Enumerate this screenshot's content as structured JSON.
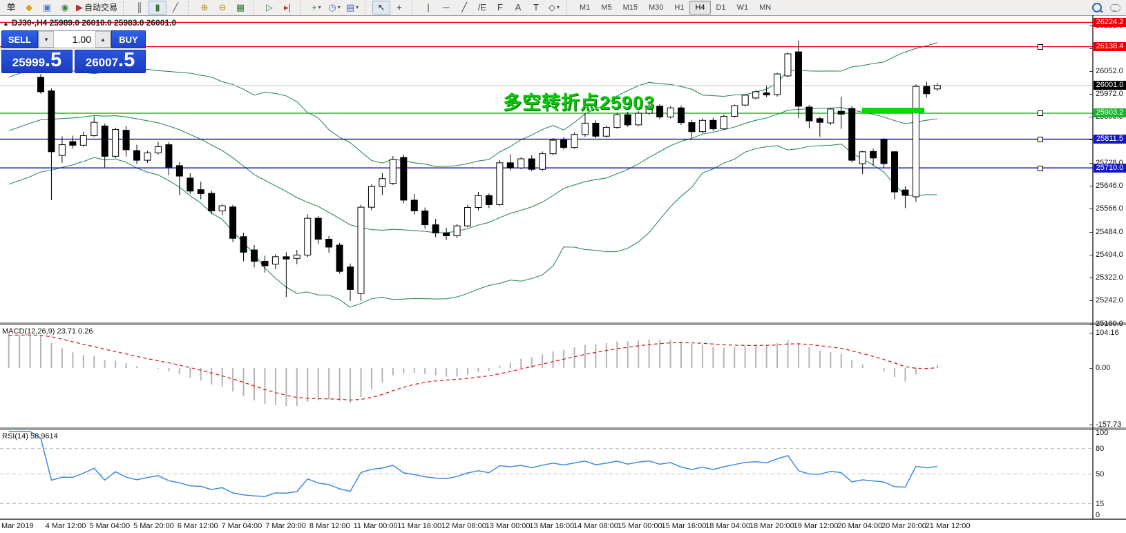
{
  "toolbar": {
    "left_items": [
      {
        "name": "new-order-button",
        "glyph": "单",
        "color": "#222"
      },
      {
        "name": "history-center-icon",
        "glyph": "◆",
        "color": "#d8a212"
      },
      {
        "name": "market-watch-icon",
        "glyph": "▣",
        "color": "#4a78c8"
      },
      {
        "name": "signals-icon",
        "glyph": "◉",
        "color": "#3a8a3a"
      },
      {
        "name": "autotrading-icon",
        "glyph": "▶",
        "color": "#b03030",
        "label": "自动交易"
      }
    ],
    "chart_type_items": [
      {
        "name": "bar-chart-icon",
        "glyph": "║",
        "color": "#555",
        "pressed": false
      },
      {
        "name": "candlestick-chart-icon",
        "glyph": "▮",
        "color": "#3a7a3a",
        "pressed": true
      },
      {
        "name": "line-chart-icon",
        "glyph": "╱",
        "color": "#555",
        "pressed": false
      }
    ],
    "zoom_items": [
      {
        "name": "zoom-in-icon",
        "glyph": "⊕",
        "color": "#b8860b"
      },
      {
        "name": "zoom-out-icon",
        "glyph": "⊖",
        "color": "#b8860b"
      },
      {
        "name": "tile-windows-icon",
        "glyph": "▦",
        "color": "#2f7d32"
      }
    ],
    "scroll_items": [
      {
        "name": "auto-scroll-icon",
        "glyph": "▷",
        "color": "#2f7d32"
      },
      {
        "name": "chart-shift-icon",
        "glyph": "▸|",
        "color": "#c03030"
      }
    ],
    "insert_items": [
      {
        "name": "add-indicator-icon",
        "glyph": "+",
        "color": "#2f7d32",
        "dropdown": true
      },
      {
        "name": "period-icon",
        "glyph": "◷",
        "color": "#3a6ac0",
        "dropdown": true
      },
      {
        "name": "template-icon",
        "glyph": "▤",
        "color": "#3a6ac0",
        "dropdown": true
      }
    ],
    "cursor_items": [
      {
        "name": "cursor-icon",
        "glyph": "↖",
        "color": "#222",
        "pressed": true
      },
      {
        "name": "crosshair-icon",
        "glyph": "+",
        "color": "#222",
        "pressed": false
      }
    ],
    "draw_items": [
      {
        "name": "vertical-line-icon",
        "glyph": "|",
        "color": "#444"
      },
      {
        "name": "horizontal-line-icon",
        "glyph": "─",
        "color": "#444"
      },
      {
        "name": "trendline-icon",
        "glyph": "╱",
        "color": "#444"
      },
      {
        "name": "channel-icon",
        "glyph": "/E",
        "color": "#444"
      },
      {
        "name": "fibonacci-icon",
        "glyph": "F",
        "color": "#444"
      },
      {
        "name": "text-icon",
        "glyph": "A",
        "color": "#444"
      },
      {
        "name": "text-label-icon",
        "glyph": "T",
        "color": "#444"
      },
      {
        "name": "arrows-icon",
        "glyph": "◇",
        "color": "#444",
        "dropdown": true
      }
    ],
    "timeframes": [
      "M1",
      "M5",
      "M15",
      "M30",
      "H1",
      "H4",
      "D1",
      "W1",
      "MN"
    ],
    "active_timeframe": "H4"
  },
  "quote_panel": {
    "sell_label": "SELL",
    "buy_label": "BUY",
    "volume": "1.00",
    "sell_price_main": "25999",
    "sell_price_pip": ".5",
    "buy_price_main": "26007",
    "buy_price_pip": ".5"
  },
  "chart": {
    "collapse_arrow": "▲",
    "title": "DJ30-,H4  25989.0 26010.0 25983.0 26001.0",
    "annotation_text": "多空转折点25903",
    "annotation_color": "#00cc00"
  },
  "macd_pane": {
    "label": "MACD(12,26,9) 23.71 0.26"
  },
  "rsi_pane": {
    "label": "RSI(14) 58.9614"
  },
  "chart_data": {
    "type": "candlestick",
    "symbol": "DJ30-",
    "timeframe": "H4",
    "ohlc_display": {
      "open": "25989.0",
      "high": "26010.0",
      "low": "25983.0",
      "close": "26001.0"
    },
    "price_axis_ticks": [
      26212.0,
      26132.0,
      26052.0,
      25972.0,
      25890.0,
      25810.0,
      25728.0,
      25646.0,
      25566.0,
      25484.0,
      25404.0,
      25322.0,
      25242.0,
      25160.0
    ],
    "current_price": {
      "value": 26001.0,
      "badge_color": "#000000",
      "line_color": "#c8c8c8"
    },
    "level_lines": [
      {
        "price": 26224.2,
        "color": "#ee0000",
        "badge": "#ee0000",
        "handle": false
      },
      {
        "price": 26138.4,
        "color": "#ee0000",
        "badge": "#ee0000",
        "handle": true
      },
      {
        "price": 25903.2,
        "color": "#00a000",
        "badge": "#18b52e",
        "handle": true
      },
      {
        "price": 25811.5,
        "color": "#0000c8",
        "badge": "#1515cc",
        "handle": true
      },
      {
        "price": 25710.0,
        "color": "#0000c8",
        "badge": "#1515cc",
        "handle": true
      }
    ],
    "highlight_segment": {
      "price": 25903.2,
      "color": "#00dd00"
    },
    "bollinger": {
      "period": 20,
      "deviation": 2,
      "color": "#2e8b57"
    },
    "candles": [
      [
        26030,
        26042,
        25972,
        25979
      ],
      [
        25982,
        25990,
        25596,
        25767
      ],
      [
        25754,
        25822,
        25728,
        25792
      ],
      [
        25803,
        25824,
        25779,
        25790
      ],
      [
        25790,
        25838,
        25786,
        25824
      ],
      [
        25824,
        25892,
        25820,
        25871
      ],
      [
        25858,
        25866,
        25712,
        25751
      ],
      [
        25751,
        25852,
        25744,
        25846
      ],
      [
        25843,
        25858,
        25750,
        25774
      ],
      [
        25771,
        25792,
        25724,
        25737
      ],
      [
        25737,
        25770,
        25728,
        25763
      ],
      [
        25763,
        25802,
        25757,
        25785
      ],
      [
        25792,
        25801,
        25684,
        25713
      ],
      [
        25718,
        25731,
        25614,
        25681
      ],
      [
        25674,
        25691,
        25618,
        25628
      ],
      [
        25633,
        25661,
        25599,
        25619
      ],
      [
        25620,
        25629,
        25546,
        25558
      ],
      [
        25558,
        25582,
        25543,
        25576
      ],
      [
        25572,
        25580,
        25448,
        25461
      ],
      [
        25467,
        25480,
        25380,
        25412
      ],
      [
        25420,
        25437,
        25358,
        25380
      ],
      [
        25380,
        25400,
        25340,
        25364
      ],
      [
        25370,
        25405,
        25352,
        25396
      ],
      [
        25396,
        25412,
        25254,
        25388
      ],
      [
        25390,
        25420,
        25370,
        25402
      ],
      [
        25402,
        25545,
        25395,
        25532
      ],
      [
        25532,
        25540,
        25440,
        25458
      ],
      [
        25458,
        25470,
        25410,
        25430
      ],
      [
        25437,
        25445,
        25336,
        25344
      ],
      [
        25360,
        25372,
        25240,
        25280
      ],
      [
        25266,
        25580,
        25240,
        25571
      ],
      [
        25571,
        25652,
        25560,
        25644
      ],
      [
        25644,
        25692,
        25614,
        25672
      ],
      [
        25655,
        25752,
        25650,
        25740
      ],
      [
        25747,
        25757,
        25585,
        25596
      ],
      [
        25596,
        25618,
        25545,
        25558
      ],
      [
        25558,
        25570,
        25495,
        25509
      ],
      [
        25509,
        25530,
        25465,
        25480
      ],
      [
        25480,
        25498,
        25455,
        25470
      ],
      [
        25470,
        25512,
        25462,
        25505
      ],
      [
        25505,
        25580,
        25500,
        25570
      ],
      [
        25570,
        25625,
        25560,
        25612
      ],
      [
        25612,
        25620,
        25568,
        25580
      ],
      [
        25580,
        25738,
        25575,
        25728
      ],
      [
        25728,
        25758,
        25700,
        25710
      ],
      [
        25710,
        25748,
        25705,
        25742
      ],
      [
        25742,
        25755,
        25698,
        25705
      ],
      [
        25705,
        25768,
        25700,
        25760
      ],
      [
        25760,
        25815,
        25755,
        25808
      ],
      [
        25808,
        25818,
        25775,
        25782
      ],
      [
        25782,
        25835,
        25778,
        25828
      ],
      [
        25828,
        25902,
        25820,
        25868
      ],
      [
        25868,
        25878,
        25815,
        25822
      ],
      [
        25822,
        25860,
        25818,
        25853
      ],
      [
        25853,
        25905,
        25848,
        25898
      ],
      [
        25898,
        25908,
        25855,
        25862
      ],
      [
        25862,
        25910,
        25858,
        25903
      ],
      [
        25903,
        25938,
        25898,
        25928
      ],
      [
        25928,
        25935,
        25882,
        25890
      ],
      [
        25890,
        25928,
        25885,
        25922
      ],
      [
        25922,
        25930,
        25862,
        25870
      ],
      [
        25870,
        25880,
        25818,
        25838
      ],
      [
        25838,
        25885,
        25832,
        25878
      ],
      [
        25878,
        25888,
        25840,
        25848
      ],
      [
        25848,
        25898,
        25844,
        25892
      ],
      [
        25892,
        25934,
        25888,
        25930
      ],
      [
        25932,
        25970,
        25928,
        25967
      ],
      [
        25957,
        25984,
        25952,
        25979
      ],
      [
        25975,
        26000,
        25960,
        25968
      ],
      [
        25969,
        26046,
        25962,
        26042
      ],
      [
        26035,
        26118,
        26030,
        26113
      ],
      [
        26120,
        26160,
        25885,
        25928
      ],
      [
        25925,
        25932,
        25850,
        25876
      ],
      [
        25884,
        25890,
        25820,
        25871
      ],
      [
        25869,
        25922,
        25862,
        25918
      ],
      [
        25910,
        25962,
        25848,
        25900
      ],
      [
        25920,
        25928,
        25730,
        25737
      ],
      [
        25725,
        25770,
        25688,
        25767
      ],
      [
        25768,
        25778,
        25718,
        25745
      ],
      [
        25810,
        25815,
        25712,
        25725
      ],
      [
        25767,
        25770,
        25600,
        25625
      ],
      [
        25632,
        25645,
        25568,
        25613
      ],
      [
        25608,
        26005,
        25590,
        25998
      ],
      [
        25998,
        26015,
        25958,
        25972
      ],
      [
        25989,
        26010,
        25983,
        26001
      ]
    ],
    "indicators": {
      "macd": {
        "label": "MACD(12,26,9) 23.71 0.26",
        "params": [
          12,
          26,
          9
        ],
        "value_main": "23.71",
        "value_signal": "0.26",
        "axis_labels": [
          "104.16",
          "0.00",
          "-157.73"
        ],
        "histogram_color": "#b4b4b4",
        "signal_color": "#d42020"
      },
      "rsi": {
        "label": "RSI(14) 58.9614",
        "period": 14,
        "value": "58.9614",
        "axis_labels": [
          "100",
          "80",
          "50",
          "15",
          "0"
        ],
        "levels": [
          80,
          50,
          15
        ],
        "line_color": "#3f8ae0"
      }
    },
    "time_axis_labels": [
      "Mar 2019",
      "4 Mar 12:00",
      "5 Mar 04:00",
      "5 Mar 20:00",
      "6 Mar 12:00",
      "7 Mar 04:00",
      "7 Mar 20:00",
      "8 Mar 12:00",
      "11 Mar 00:00",
      "11 Mar 16:00",
      "12 Mar 08:00",
      "13 Mar 00:00",
      "13 Mar 16:00",
      "14 Mar 08:00",
      "15 Mar 00:00",
      "15 Mar 16:00",
      "18 Mar 04:00",
      "18 Mar 20:00",
      "19 Mar 12:00",
      "20 Mar 04:00",
      "20 Mar 20:00",
      "21 Mar 12:00"
    ]
  }
}
